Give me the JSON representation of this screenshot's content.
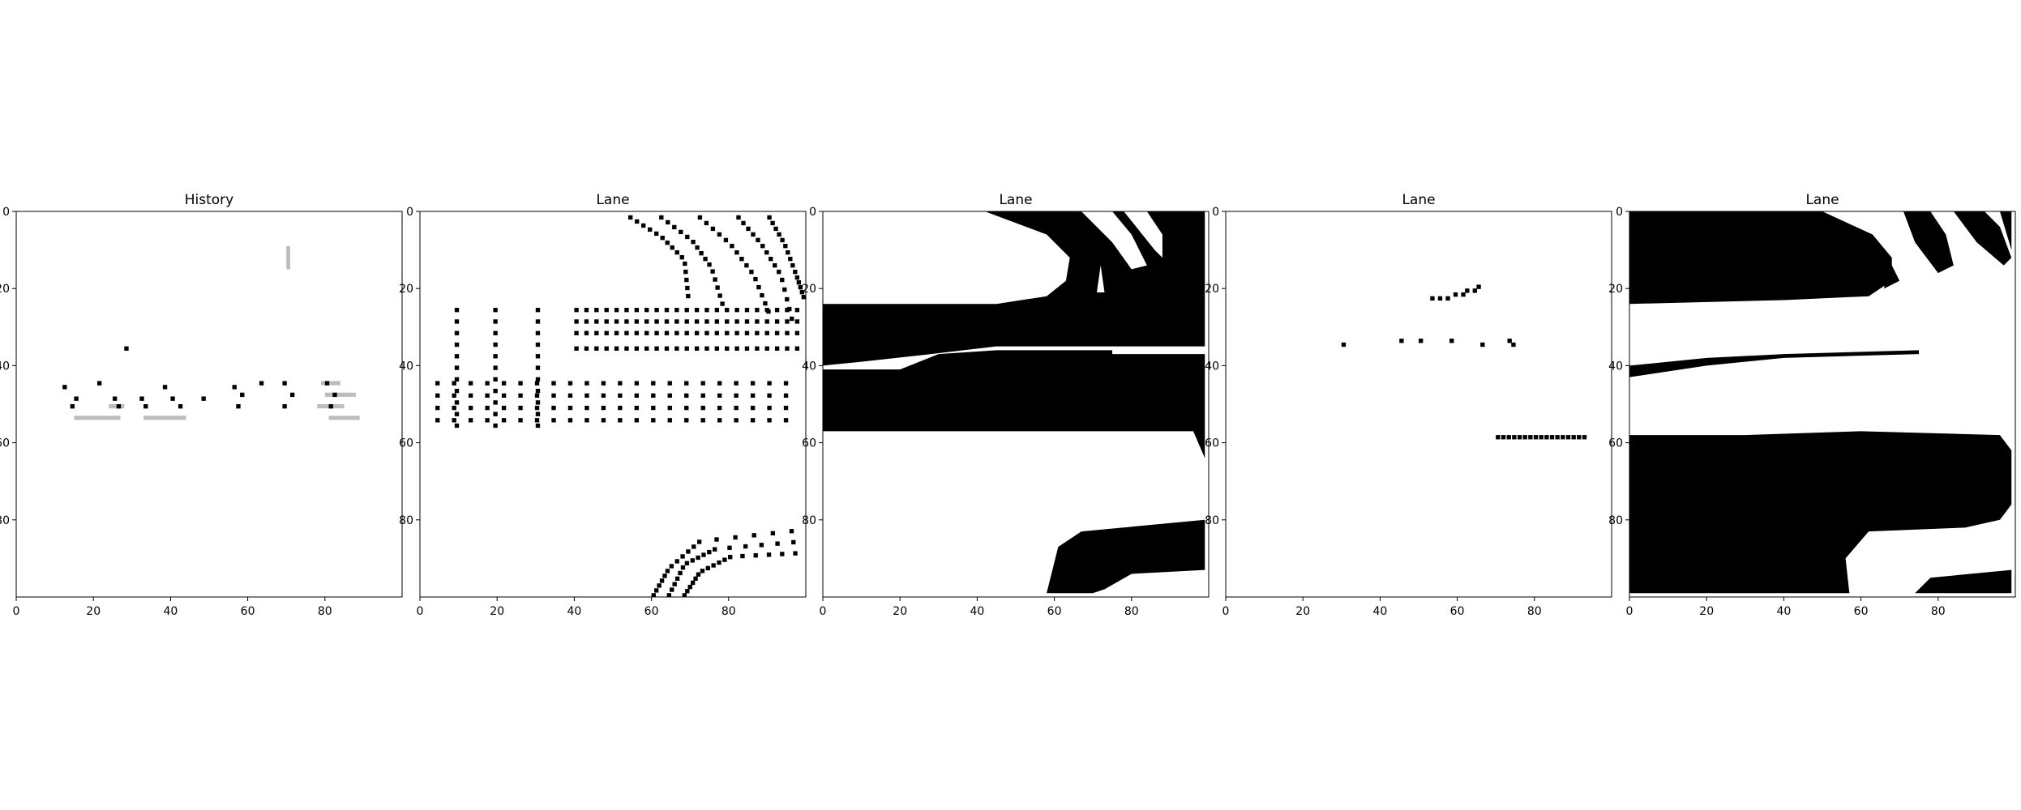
{
  "figure": {
    "background": "#ffffff"
  },
  "colors": {
    "ink": "#000000",
    "blank": "#ffffff",
    "trace": "#bdbdbd"
  },
  "chart_data": [
    {
      "type": "heatmap",
      "title": "History",
      "xlim": [
        0,
        99
      ],
      "ylim": [
        99,
        0
      ],
      "xticks": [
        0,
        20,
        40,
        60,
        80
      ],
      "yticks": [
        0,
        20,
        40,
        60,
        80
      ],
      "colormap": "gray_r",
      "shape": "sparse",
      "points": [
        [
          12,
          45
        ],
        [
          14,
          50
        ],
        [
          15,
          48
        ],
        [
          21,
          44
        ],
        [
          28,
          35
        ],
        [
          25,
          48
        ],
        [
          26,
          50
        ],
        [
          32,
          48
        ],
        [
          33,
          50
        ],
        [
          38,
          45
        ],
        [
          40,
          48
        ],
        [
          42,
          50
        ],
        [
          48,
          48
        ],
        [
          56,
          45
        ],
        [
          57,
          50
        ],
        [
          58,
          47
        ],
        [
          63,
          44
        ],
        [
          69,
          44
        ],
        [
          69,
          50
        ],
        [
          71,
          47
        ],
        [
          80,
          44
        ],
        [
          82,
          47
        ],
        [
          81,
          50
        ]
      ],
      "faint": [
        [
          15,
          53,
          26,
          53
        ],
        [
          33,
          53,
          43,
          53
        ],
        [
          79,
          44,
          83,
          44
        ],
        [
          80,
          47,
          87,
          47
        ],
        [
          78,
          50,
          84,
          50
        ],
        [
          81,
          53,
          88,
          53
        ],
        [
          70,
          9,
          70,
          14
        ],
        [
          24,
          50,
          27,
          50
        ]
      ]
    },
    {
      "type": "heatmap",
      "title": "Lane",
      "xlim": [
        0,
        99
      ],
      "ylim": [
        99,
        0
      ],
      "xticks": [
        0,
        20,
        40,
        60,
        80
      ],
      "yticks": [
        0,
        20,
        40,
        60,
        80
      ],
      "colormap": "gray_r",
      "shape": "dotted-lanes"
    },
    {
      "type": "heatmap",
      "title": "Lane",
      "xlim": [
        0,
        99
      ],
      "ylim": [
        99,
        0
      ],
      "xticks": [
        0,
        20,
        40,
        60,
        80
      ],
      "yticks": [
        0,
        20,
        40,
        60,
        80
      ],
      "colormap": "gray_r",
      "shape": "drivable-area-a"
    },
    {
      "type": "heatmap",
      "title": "Lane",
      "xlim": [
        0,
        99
      ],
      "ylim": [
        99,
        0
      ],
      "xticks": [
        0,
        20,
        40,
        60,
        80
      ],
      "yticks": [
        0,
        20,
        40,
        60,
        80
      ],
      "colormap": "gray_r",
      "shape": "sparse",
      "points": [
        [
          30,
          34
        ],
        [
          45,
          33
        ],
        [
          50,
          33
        ],
        [
          58,
          33
        ],
        [
          66,
          34
        ],
        [
          73,
          33
        ],
        [
          74,
          34
        ],
        [
          53,
          22
        ],
        [
          55,
          22
        ],
        [
          57,
          22
        ],
        [
          59,
          21
        ],
        [
          61,
          21
        ],
        [
          62,
          20
        ],
        [
          64,
          20
        ],
        [
          65,
          19
        ]
      ],
      "segments": [
        [
          70,
          58,
          93,
          58
        ]
      ]
    },
    {
      "type": "heatmap",
      "title": "Lane",
      "xlim": [
        0,
        99
      ],
      "ylim": [
        99,
        0
      ],
      "xticks": [
        0,
        20,
        40,
        60,
        80
      ],
      "yticks": [
        0,
        20,
        40,
        60,
        80
      ],
      "colormap": "gray_r",
      "shape": "drivable-area-b"
    }
  ]
}
